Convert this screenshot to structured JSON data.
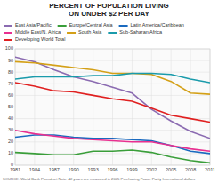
{
  "chart_data": {
    "type": "line",
    "title": "PERCENT OF POPULATION LIVING",
    "subtitle": "ON UNDER $2 PER DAY",
    "x": [
      1981,
      1984,
      1987,
      1990,
      1993,
      1996,
      1999,
      2002,
      2005,
      2008,
      2011
    ],
    "series": [
      {
        "name": "East Asia/Pacific",
        "color": "#8b6bb1",
        "values": [
          93,
          89,
          82,
          76,
          72,
          67,
          62,
          48,
          38,
          29,
          23
        ]
      },
      {
        "name": "Europe/Central Asia",
        "color": "#3a9e3a",
        "values": [
          11,
          10,
          9,
          9,
          12,
          12,
          13,
          11,
          7,
          4,
          2
        ]
      },
      {
        "name": "Latin America/Caribbean",
        "color": "#1a6abf",
        "values": [
          24,
          26,
          26,
          24,
          23,
          23,
          22,
          21,
          17,
          12,
          10
        ]
      },
      {
        "name": "Middle East/N. Africa",
        "color": "#e83090",
        "values": [
          30,
          27,
          25,
          23,
          22,
          21,
          20,
          20,
          17,
          14,
          12
        ]
      },
      {
        "name": "South Asia",
        "color": "#d4a017",
        "values": [
          89,
          88,
          86,
          84,
          82,
          79,
          79,
          78,
          72,
          62,
          61
        ]
      },
      {
        "name": "Sub-Saharan Africa",
        "color": "#1a9bab",
        "values": [
          74,
          76,
          76,
          76,
          77,
          77,
          79,
          79,
          78,
          74,
          71
        ]
      },
      {
        "name": "Developing World Total",
        "color": "#e02020",
        "values": [
          71,
          68,
          64,
          63,
          60,
          57,
          55,
          49,
          43,
          40,
          37
        ]
      }
    ],
    "xlim": [
      1981,
      2011
    ],
    "ylim": [
      0,
      100
    ],
    "xticks": [
      1981,
      1984,
      1987,
      1990,
      1993,
      1996,
      1999,
      2002,
      2005,
      2008,
      2011
    ],
    "yticks": [
      0,
      10,
      20,
      30,
      40,
      50,
      60,
      70,
      80,
      90,
      100
    ],
    "grid": true,
    "legend": "top",
    "annotations": [
      "SOURCE: World Bank Povcalnet   Note: All years are measured in 2005 Purchasing Power Parity International dollars"
    ]
  }
}
